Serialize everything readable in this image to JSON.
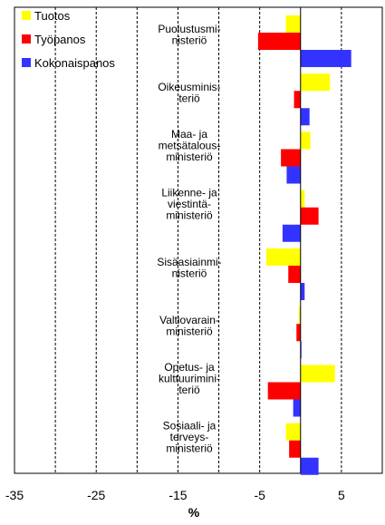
{
  "chart_data": {
    "type": "bar",
    "orientation": "horizontal",
    "xlabel": "%",
    "xlim": [
      -35,
      10
    ],
    "xticks": [
      -35,
      -25,
      -15,
      -5,
      5
    ],
    "grid": "vertical dashed",
    "legend_position": "top-left",
    "categories": [
      [
        "Puolustusmi-",
        "nisteriö"
      ],
      [
        "Oikeusminis-",
        "teriö"
      ],
      [
        "Maa- ja",
        "metsätalous-",
        "ministeriö"
      ],
      [
        "Liikenne- ja",
        "viestintä-",
        "ministeriö"
      ],
      [
        "Sisäasiainmi-",
        "nisteriö"
      ],
      [
        "Valtiovarain-",
        "ministeriö"
      ],
      [
        "Opetus- ja",
        "kulttuurimini-",
        "teriö"
      ],
      [
        "Sosiaali- ja",
        "terveys-",
        "ministeriö"
      ]
    ],
    "series": [
      {
        "name": "Tuotos",
        "color": "#ffff00",
        "values": [
          -1.8,
          3.6,
          1.2,
          0.5,
          -4.2,
          -0.2,
          4.2,
          -1.8
        ]
      },
      {
        "name": "Työpanos",
        "color": "#ff0000",
        "values": [
          -5.2,
          -0.8,
          -2.4,
          2.2,
          -1.5,
          -0.5,
          -4.0,
          -1.4
        ]
      },
      {
        "name": "Kokonaispanos",
        "color": "#3333ff",
        "values": [
          6.2,
          1.1,
          -1.7,
          -2.2,
          0.5,
          0.1,
          -0.9,
          2.2
        ]
      }
    ]
  }
}
